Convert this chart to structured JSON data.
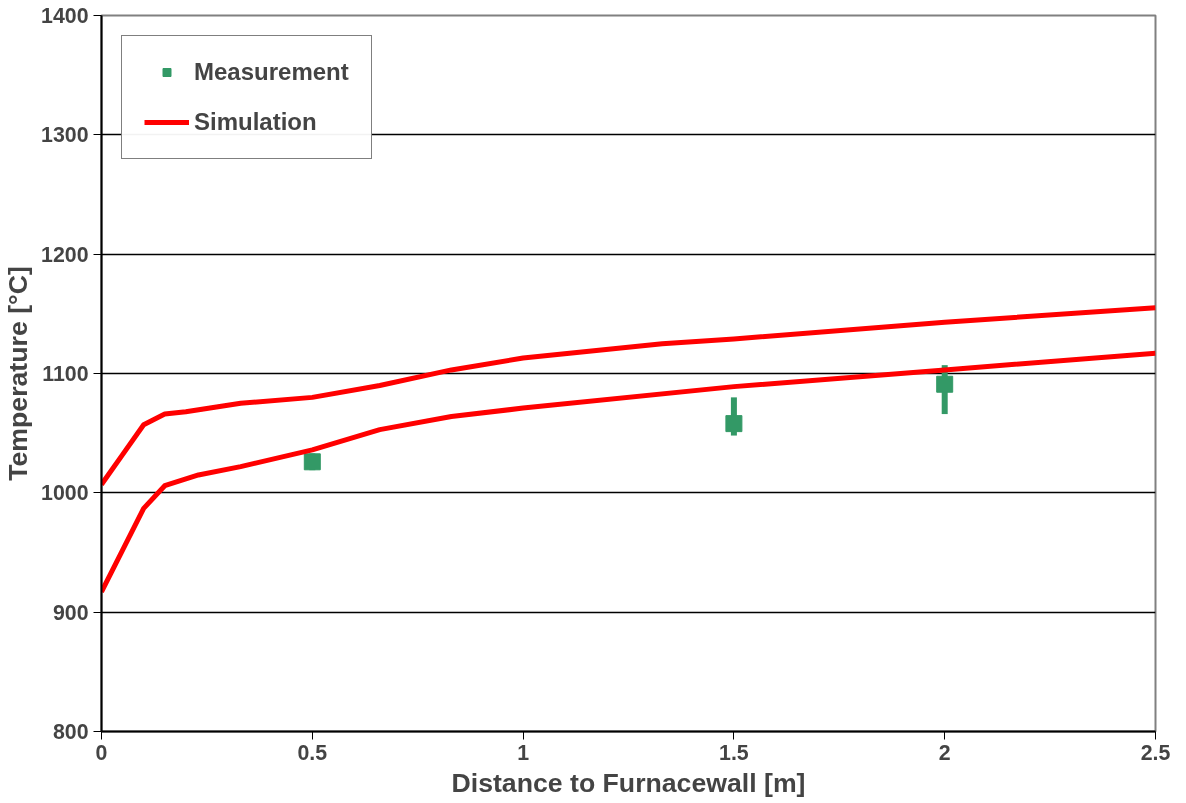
{
  "chart_data": {
    "type": "line",
    "xlabel": "Distance to Furnacewall [m]",
    "ylabel": "Temperature [°C]",
    "xlim": [
      0,
      2.5
    ],
    "xticks": [
      0,
      0.5,
      1,
      1.5,
      2,
      2.5
    ],
    "ylim": [
      800,
      1400
    ],
    "yticks": [
      800,
      900,
      1000,
      1100,
      1200,
      1300,
      1400
    ],
    "grid": "y",
    "legend": "top left",
    "series": [
      {
        "name": "Measurement",
        "type": "scatter",
        "marker": "square",
        "color": "#339966",
        "x": [
          0.5,
          1.5,
          2.0
        ],
        "values": [
          1026,
          1058,
          1091
        ],
        "errors": [
          [
            1019,
            1033
          ],
          [
            1048,
            1080
          ],
          [
            1066,
            1107
          ]
        ]
      },
      {
        "name": "Simulation",
        "color": "#ff0000",
        "line_style": "solid",
        "x": [
          0,
          0.05,
          0.1,
          0.15,
          0.2,
          0.33,
          0.5,
          0.66,
          0.83,
          1.0,
          1.33,
          1.5,
          2.0,
          2.5
        ],
        "values": [
          1007,
          1032,
          1057,
          1066,
          1068,
          1075,
          1080,
          1090,
          1103,
          1113,
          1125,
          1129,
          1143,
          1155
        ]
      },
      {
        "color": "#ff0000",
        "line_style": "solid",
        "x": [
          0,
          0.05,
          0.1,
          0.15,
          0.23,
          0.33,
          0.5,
          0.66,
          0.83,
          1.0,
          1.5,
          2.0,
          2.5
        ],
        "values": [
          917,
          952,
          987,
          1006,
          1015,
          1022,
          1036,
          1053,
          1064,
          1071,
          1089,
          1103,
          1117
        ]
      }
    ]
  }
}
